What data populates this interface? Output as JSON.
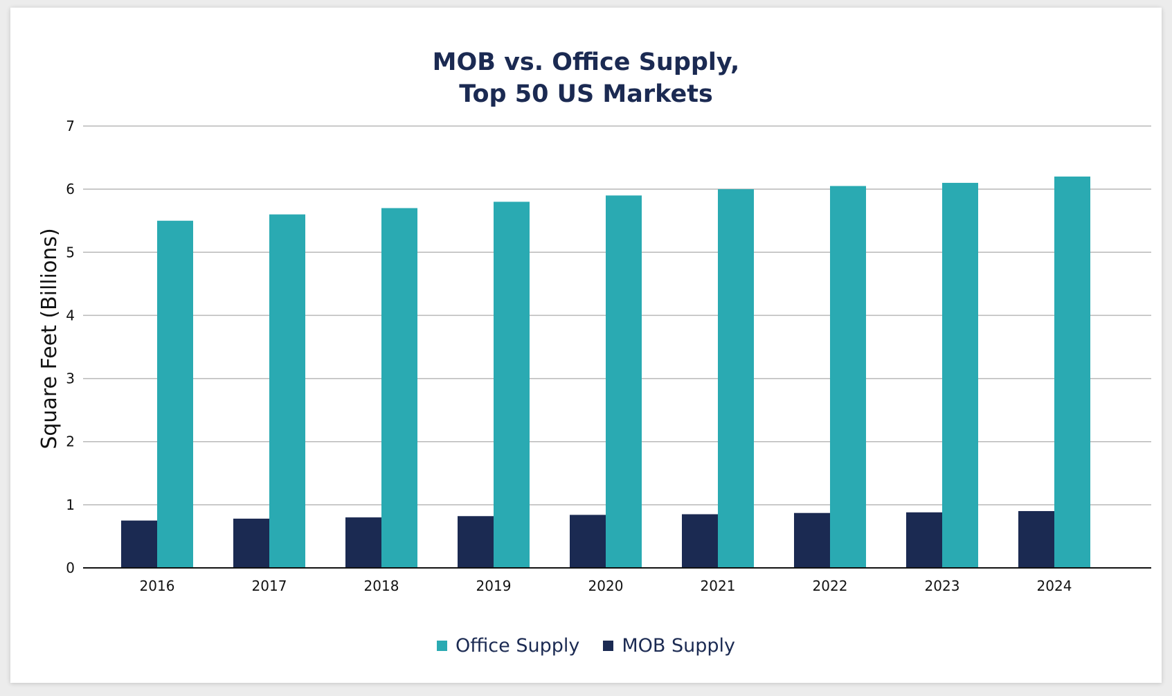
{
  "chart_data": {
    "type": "bar",
    "title_lines": [
      "MOB vs. Office Supply,",
      "Top 50 US Markets"
    ],
    "xlabel": "",
    "ylabel": "Square Feet (Billions)",
    "ylim": [
      0,
      7
    ],
    "yticks": [
      "0",
      "1",
      "2",
      "3",
      "4",
      "5",
      "6",
      "7"
    ],
    "categories": [
      "2016",
      "2017",
      "2018",
      "2019",
      "2020",
      "2021",
      "2022",
      "2023",
      "2024"
    ],
    "series": [
      {
        "name": "MOB Supply",
        "color": "#1b2a52",
        "values": [
          0.75,
          0.78,
          0.8,
          0.82,
          0.84,
          0.85,
          0.87,
          0.88,
          0.9
        ]
      },
      {
        "name": "Office Supply",
        "color": "#2aaab2",
        "values": [
          5.5,
          5.6,
          5.7,
          5.8,
          5.9,
          6.0,
          6.05,
          6.1,
          6.2
        ]
      }
    ],
    "legend": [
      {
        "label": "Office Supply",
        "color": "#2aaab2"
      },
      {
        "label": "MOB Supply",
        "color": "#1b2a52"
      }
    ],
    "grid": true,
    "legend_position": "bottom"
  }
}
